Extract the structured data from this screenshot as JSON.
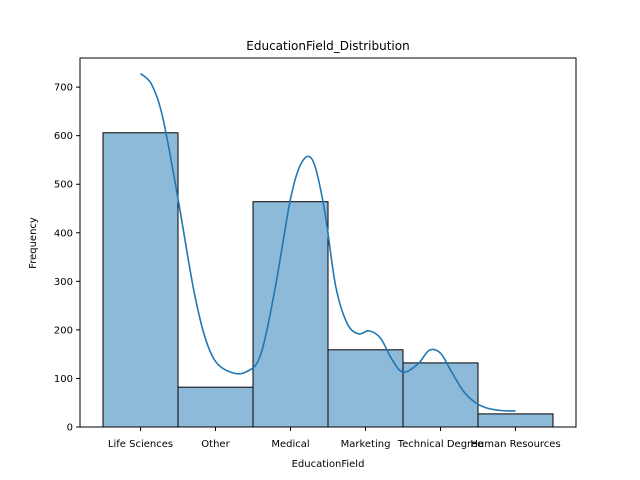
{
  "chart_data": {
    "type": "bar",
    "title": "EducationField_Distribution",
    "xlabel": "EducationField",
    "ylabel": "Frequency",
    "categories": [
      "Life Sciences",
      "Other",
      "Medical",
      "Marketing",
      "Technical Degree",
      "Human Resources"
    ],
    "values": [
      606,
      82,
      464,
      159,
      132,
      27
    ],
    "yticks": [
      0,
      100,
      200,
      300,
      400,
      500,
      600,
      700
    ],
    "ylim": [
      0,
      760
    ],
    "kde": {
      "x": [
        0.0,
        0.15,
        0.3,
        0.5,
        0.7,
        0.85,
        1.0,
        1.2,
        1.4,
        1.6,
        1.8,
        2.0,
        2.15,
        2.3,
        2.45,
        2.6,
        2.75,
        2.9,
        3.05,
        3.2,
        3.35,
        3.5,
        3.7,
        3.85,
        4.0,
        4.15,
        4.3,
        4.45,
        4.6,
        4.8,
        5.0
      ],
      "y": [
        728,
        705,
        635,
        470,
        290,
        190,
        135,
        113,
        113,
        148,
        290,
        470,
        545,
        548,
        450,
        292,
        215,
        192,
        198,
        183,
        140,
        113,
        130,
        158,
        152,
        113,
        75,
        52,
        40,
        34,
        33
      ]
    },
    "bar_color": "#8ebad9",
    "kde_color": "#1f77b4",
    "legend": "none",
    "grid": false
  }
}
